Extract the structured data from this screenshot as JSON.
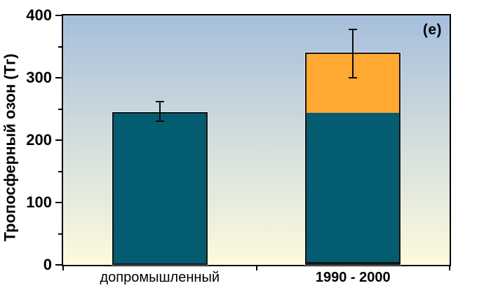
{
  "chart_data": {
    "type": "bar",
    "stacked": true,
    "title": "",
    "ylabel": "Тропосферный озон (Тг)",
    "panel_label": "(e)",
    "categories": [
      {
        "label": "допромышленный",
        "bold": false
      },
      {
        "label": "1990 - 2000",
        "bold": true
      }
    ],
    "ylim": [
      0,
      400
    ],
    "ytick_major": 100,
    "ytick_minor": 50,
    "series": [
      {
        "color": "#045C71",
        "values": [
          245,
          245
        ]
      },
      {
        "color": "#FFA832",
        "values": [
          0,
          95
        ]
      }
    ],
    "totals": [
      245,
      340
    ],
    "error_bars": [
      {
        "low": 230,
        "high": 262
      },
      {
        "low": 300,
        "high": 378
      }
    ],
    "plot_background": {
      "gradient_top": "#A6BEDC",
      "gradient_bottom": "#FDFBDC"
    },
    "bar_border_color": "#141414",
    "axis_color": "#000000",
    "grid": false,
    "legend": false
  }
}
